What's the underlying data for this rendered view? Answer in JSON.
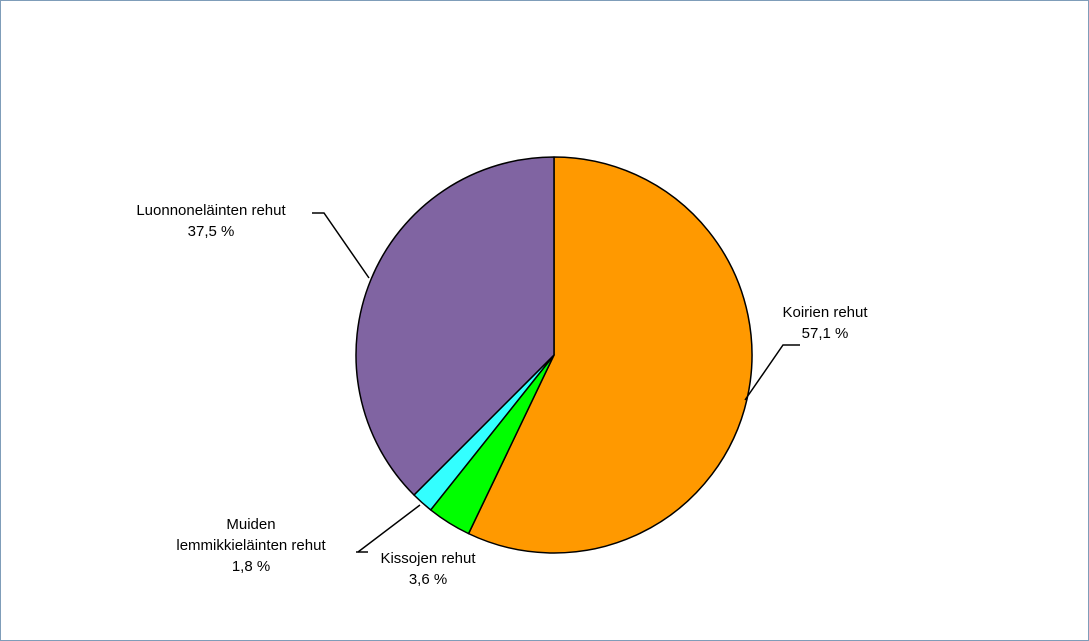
{
  "chart_data": {
    "type": "pie",
    "title": "",
    "slices": [
      {
        "label": "Koirien rehut",
        "value": 57.1,
        "value_text": "57,1 %",
        "color": "#ff9900"
      },
      {
        "label": "Kissojen rehut",
        "value": 3.6,
        "value_text": "3,6 %",
        "color": "#00ff00"
      },
      {
        "label": "Muiden lemmikkieläinten rehut",
        "label_lines": [
          "Muiden",
          "lemmikkieläinten rehut"
        ],
        "value": 1.8,
        "value_text": "1,8 %",
        "color": "#33ffff"
      },
      {
        "label": "Luonnoneläinten rehut",
        "value": 37.5,
        "value_text": "37,5 %",
        "color": "#8064a2"
      }
    ],
    "start": "12 o'clock",
    "direction": "clockwise",
    "legend": "none",
    "data_labels": "outside with leader lines"
  }
}
